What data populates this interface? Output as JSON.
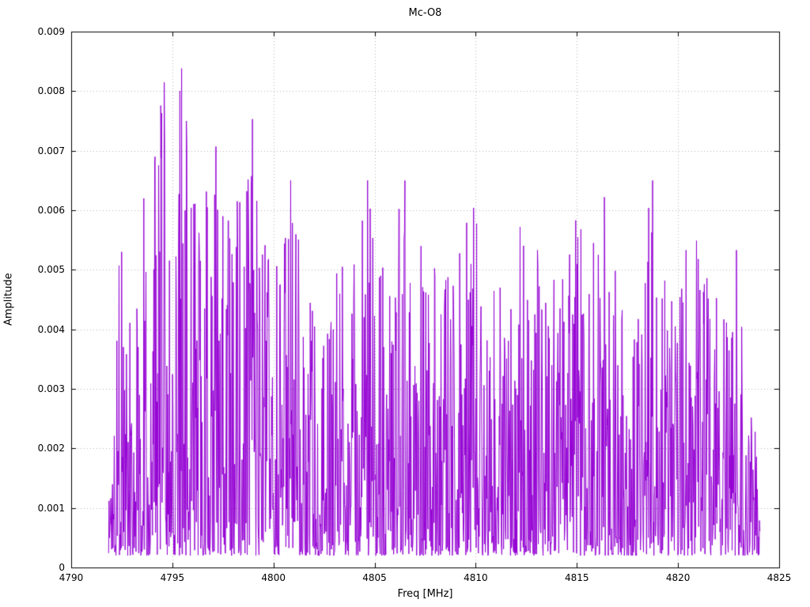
{
  "chart_data": {
    "type": "line",
    "title": "Mc-O8",
    "xlabel": "Freq [MHz]",
    "ylabel": "Amplitude",
    "xlim": [
      4790,
      4825
    ],
    "ylim": [
      0,
      0.009
    ],
    "x_ticks": [
      4790,
      4795,
      4800,
      4805,
      4810,
      4815,
      4820,
      4825
    ],
    "y_ticks": [
      0,
      0.001,
      0.002,
      0.003,
      0.004,
      0.005,
      0.006,
      0.007,
      0.008,
      0.009
    ],
    "grid": true,
    "legend": "none",
    "line_color": "#9400d3",
    "grid_color": "#b4b4b4",
    "border_color": "#000000",
    "background_color": "#ffffff",
    "series_range": {
      "x_start": 4791.85,
      "x_end": 4824.05,
      "n_points": 1500
    },
    "noise": {
      "seed": 1337,
      "v_min": 0.0002,
      "skew": 2.0,
      "spike_prob": 0.02
    },
    "envelope": [
      [
        4791.85,
        0.0012
      ],
      [
        4792.3,
        0.0054
      ],
      [
        4793.0,
        0.0045
      ],
      [
        4793.6,
        0.0062
      ],
      [
        4794.2,
        0.007
      ],
      [
        4794.6,
        0.0082
      ],
      [
        4795.0,
        0.006
      ],
      [
        4795.45,
        0.0084
      ],
      [
        4795.8,
        0.0075
      ],
      [
        4796.3,
        0.0059
      ],
      [
        4797.15,
        0.0071
      ],
      [
        4797.6,
        0.0059
      ],
      [
        4798.2,
        0.0062
      ],
      [
        4798.95,
        0.0076
      ],
      [
        4799.5,
        0.0053
      ],
      [
        4800.3,
        0.0053
      ],
      [
        4800.85,
        0.0065
      ],
      [
        4801.5,
        0.005
      ],
      [
        4802.3,
        0.0042
      ],
      [
        4803.3,
        0.0051
      ],
      [
        4804.0,
        0.0049
      ],
      [
        4804.65,
        0.0065
      ],
      [
        4805.5,
        0.0049
      ],
      [
        4806.5,
        0.0065
      ],
      [
        4807.3,
        0.0054
      ],
      [
        4808.1,
        0.0053
      ],
      [
        4809.0,
        0.005
      ],
      [
        4809.9,
        0.0061
      ],
      [
        4810.8,
        0.0047
      ],
      [
        4811.6,
        0.005
      ],
      [
        4812.25,
        0.0057
      ],
      [
        4813.1,
        0.0053
      ],
      [
        4814.0,
        0.0048
      ],
      [
        4814.9,
        0.0058
      ],
      [
        4815.6,
        0.0053
      ],
      [
        4816.35,
        0.0062
      ],
      [
        4817.2,
        0.0042
      ],
      [
        4818.0,
        0.0048
      ],
      [
        4818.65,
        0.0065
      ],
      [
        4819.3,
        0.005
      ],
      [
        4820.1,
        0.0048
      ],
      [
        4820.9,
        0.0053
      ],
      [
        4821.6,
        0.0049
      ],
      [
        4822.3,
        0.0041
      ],
      [
        4822.95,
        0.0053
      ],
      [
        4823.5,
        0.0027
      ],
      [
        4824.05,
        0.0019
      ]
    ],
    "peaks": [
      [
        4792.5,
        0.0053
      ],
      [
        4793.6,
        0.0062
      ],
      [
        4794.15,
        0.0069
      ],
      [
        4794.6,
        0.00815
      ],
      [
        4795.45,
        0.00838
      ],
      [
        4795.7,
        0.0075
      ],
      [
        4797.15,
        0.00707
      ],
      [
        4797.5,
        0.0059
      ],
      [
        4798.2,
        0.00615
      ],
      [
        4798.95,
        0.00753
      ],
      [
        4800.85,
        0.0065
      ],
      [
        4803.4,
        0.00505
      ],
      [
        4804.65,
        0.0065
      ],
      [
        4805.3,
        0.0049
      ],
      [
        4806.5,
        0.0065
      ],
      [
        4807.3,
        0.0054
      ],
      [
        4809.9,
        0.00604
      ],
      [
        4811.2,
        0.0047
      ],
      [
        4812.2,
        0.00572
      ],
      [
        4813.05,
        0.00533
      ],
      [
        4814.95,
        0.00583
      ],
      [
        4816.05,
        0.00525
      ],
      [
        4816.35,
        0.00622
      ],
      [
        4818.55,
        0.00604
      ],
      [
        4818.75,
        0.0065
      ],
      [
        4820.4,
        0.00533
      ],
      [
        4821.0,
        0.00518
      ],
      [
        4822.9,
        0.00533
      ]
    ]
  }
}
